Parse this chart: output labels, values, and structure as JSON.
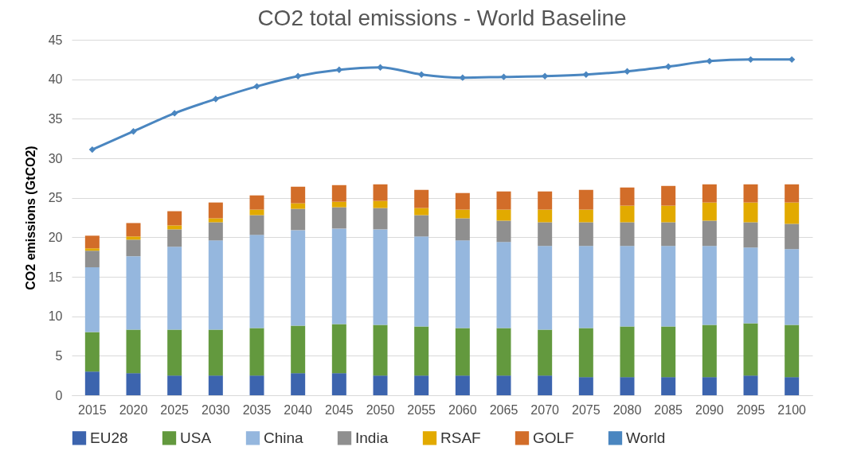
{
  "chart_data": {
    "type": "bar",
    "title": "CO2 total emissions - World Baseline",
    "ylabel": "CO2 emissions (GtCO2)",
    "categories": [
      "2015",
      "2020",
      "2025",
      "2030",
      "2035",
      "2040",
      "2045",
      "2050",
      "2055",
      "2060",
      "2065",
      "2070",
      "2075",
      "2080",
      "2085",
      "2090",
      "2095",
      "2100"
    ],
    "stacked": true,
    "ylim": [
      0,
      45
    ],
    "yticks": [
      0,
      5,
      10,
      15,
      20,
      25,
      30,
      35,
      40,
      45
    ],
    "grid": "y",
    "legend": "bottom",
    "series": [
      {
        "name": "EU28",
        "color": "#3c64ae",
        "values": [
          3.0,
          2.8,
          2.5,
          2.5,
          2.5,
          2.8,
          2.8,
          2.5,
          2.5,
          2.5,
          2.5,
          2.5,
          2.3,
          2.3,
          2.3,
          2.3,
          2.5,
          2.3
        ]
      },
      {
        "name": "USA",
        "color": "#63993e",
        "values": [
          5.0,
          5.5,
          5.8,
          5.8,
          6.0,
          6.0,
          6.2,
          6.4,
          6.2,
          6.0,
          6.0,
          5.8,
          6.2,
          6.4,
          6.4,
          6.6,
          6.6,
          6.6
        ]
      },
      {
        "name": "China",
        "color": "#95b7de",
        "values": [
          8.2,
          9.3,
          10.5,
          11.3,
          11.8,
          12.1,
          12.1,
          12.1,
          11.4,
          11.1,
          10.9,
          10.6,
          10.4,
          10.2,
          10.2,
          10.0,
          9.6,
          9.6
        ]
      },
      {
        "name": "India",
        "color": "#8f8f8f",
        "values": [
          2.1,
          2.1,
          2.2,
          2.3,
          2.5,
          2.7,
          2.7,
          2.7,
          2.7,
          2.8,
          2.7,
          3.0,
          3.0,
          3.0,
          3.0,
          3.2,
          3.2,
          3.2
        ]
      },
      {
        "name": "RSAF",
        "color": "#e2aa00",
        "values": [
          0.3,
          0.4,
          0.5,
          0.5,
          0.7,
          0.7,
          0.7,
          0.9,
          0.9,
          1.1,
          1.4,
          1.6,
          1.6,
          2.1,
          2.1,
          2.3,
          2.5,
          2.7
        ]
      },
      {
        "name": "GOLF",
        "color": "#d26d29",
        "values": [
          1.6,
          1.7,
          1.8,
          2.0,
          1.8,
          2.1,
          2.1,
          2.1,
          2.3,
          2.1,
          2.3,
          2.3,
          2.5,
          2.3,
          2.5,
          2.3,
          2.3,
          2.3
        ]
      },
      {
        "name": "World",
        "type": "line",
        "marker": "diamond",
        "color": "#4a86c0",
        "values": [
          31.1,
          33.4,
          35.7,
          37.5,
          39.1,
          40.4,
          41.2,
          41.5,
          40.6,
          40.2,
          40.3,
          40.4,
          40.6,
          41.0,
          41.6,
          42.3,
          42.5,
          42.5
        ]
      }
    ]
  }
}
